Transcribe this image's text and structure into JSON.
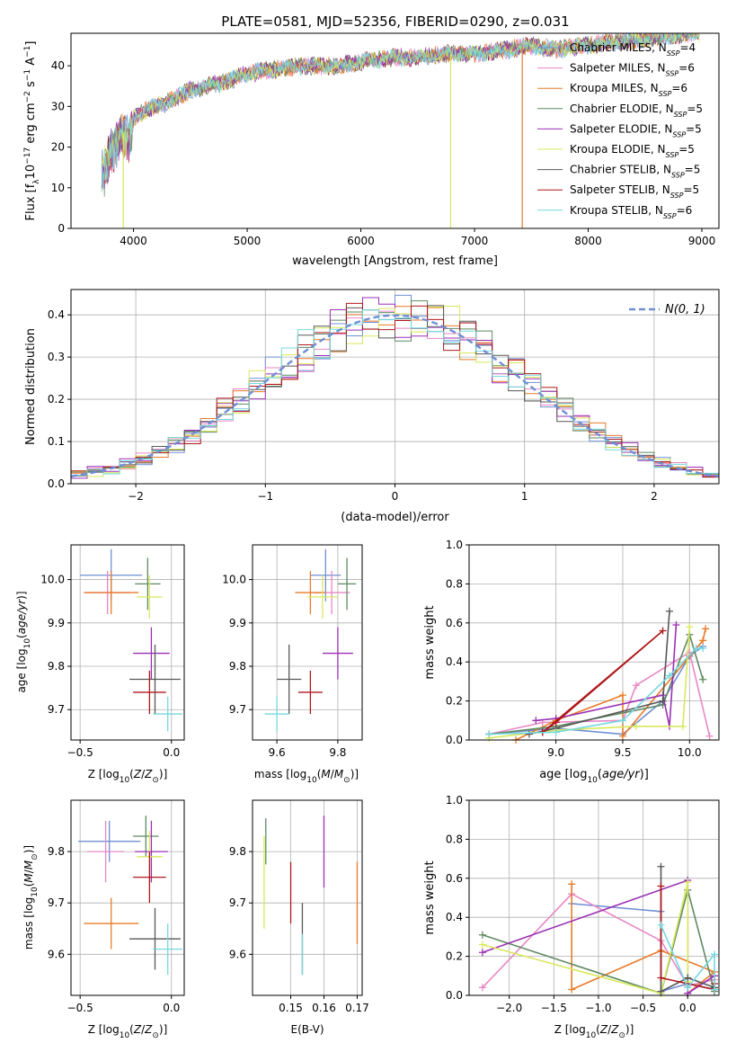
{
  "figure_title": "PLATE=0581, MJD=52356, FIBERID=0290, z=0.031",
  "colors": {
    "chabrier_miles": "#6f8fd4",
    "salpeter_miles": "#e887c6",
    "kroupa_miles": "#e77b2a",
    "chabrier_elodie": "#5f8a62",
    "salpeter_elodie": "#9b30b5",
    "kroupa_elodie": "#d9e85c",
    "chabrier_stelib": "#585858",
    "salpeter_stelib": "#b0181c",
    "kroupa_stelib": "#74d8dd",
    "normal_curve": "#6f8fd4",
    "grid": "#b0b0b0"
  },
  "chart_data": [
    {
      "id": "spectrum",
      "type": "line",
      "xlabel": "wavelength [Angstrom, rest frame]",
      "ylabel": "Flux [f_λ10^-17 erg cm^-2 s^-1 A^-1]",
      "xlim": [
        3450,
        9150
      ],
      "ylim": [
        0,
        48
      ],
      "xticks": [
        4000,
        5000,
        6000,
        7000,
        8000,
        9000
      ],
      "yticks": [
        0,
        10,
        20,
        30,
        40
      ],
      "grid": false,
      "legend_position": "right",
      "legend": [
        {
          "label": "Chabrier MILES, N",
          "sub": "SSP",
          "tail": "=4",
          "color": "#6f8fd4"
        },
        {
          "label": "Salpeter MILES, N",
          "sub": "SSP",
          "tail": "=6",
          "color": "#e887c6"
        },
        {
          "label": "Kroupa MILES, N",
          "sub": "SSP",
          "tail": "=6",
          "color": "#e77b2a"
        },
        {
          "label": "Chabrier ELODIE, N",
          "sub": "SSP",
          "tail": "=5",
          "color": "#5f8a62"
        },
        {
          "label": "Salpeter ELODIE, N",
          "sub": "SSP",
          "tail": "=5",
          "color": "#9b30b5"
        },
        {
          "label": "Kroupa ELODIE, N",
          "sub": "SSP",
          "tail": "=5",
          "color": "#d9e85c"
        },
        {
          "label": "Chabrier STELIB, N",
          "sub": "SSP",
          "tail": "=5",
          "color": "#585858"
        },
        {
          "label": "Salpeter STELIB, N",
          "sub": "SSP",
          "tail": "=5",
          "color": "#b0181c"
        },
        {
          "label": "Kroupa STELIB, N",
          "sub": "SSP",
          "tail": "=6",
          "color": "#74d8dd"
        }
      ],
      "anchors": {
        "x": [
          3720,
          3800,
          3900,
          3960,
          4000,
          4100,
          4300,
          4500,
          4800,
          5000,
          5200,
          5500,
          5800,
          6000,
          6300,
          6500,
          6800,
          7000,
          7300,
          7500,
          7700,
          8000,
          8300,
          8600,
          8900
        ],
        "y": [
          13,
          18,
          24,
          21,
          27,
          29,
          31,
          34,
          36,
          38,
          39,
          40,
          40,
          41,
          42,
          42,
          43,
          43,
          44,
          45,
          44,
          45,
          46,
          47,
          48
        ]
      },
      "dropouts": [
        {
          "x": 3910,
          "color": "#d9e85c",
          "start": 3905
        },
        {
          "x": 6790,
          "color": "#d9e85c",
          "start": 6785
        },
        {
          "x": 7420,
          "color": "#e77b2a",
          "start": 7400
        }
      ]
    },
    {
      "id": "residuals",
      "type": "histogram",
      "xlabel": "(data-model)/error",
      "ylabel": "Normed distribution",
      "xlim": [
        -2.5,
        2.5
      ],
      "ylim": [
        0,
        0.46
      ],
      "xticks": [
        -2,
        -1,
        0,
        1,
        2
      ],
      "yticks": [
        0.0,
        0.1,
        0.2,
        0.3,
        0.4
      ],
      "grid": true,
      "legend_position": "top-right",
      "legend_label": "N(0, 1)",
      "bin_edges_range": [
        -2.5,
        2.5
      ],
      "bins": 40,
      "normal": {
        "mean": 0,
        "sigma": 1
      }
    },
    {
      "id": "age_vs_Z",
      "type": "scatter",
      "xlabel": "Z [log10(Z/Z⊙)]",
      "ylabel": "age [log10(age/yr)]",
      "xlim": [
        -0.55,
        0.07
      ],
      "ylim": [
        9.63,
        10.08
      ],
      "xticks": [
        -0.5,
        0.0
      ],
      "yticks": [
        9.7,
        9.8,
        9.9,
        10.0
      ],
      "grid": true,
      "points": [
        {
          "x": -0.33,
          "y": 10.01,
          "xerr": 0.17,
          "yerr": 0.06,
          "color": "#6f8fd4"
        },
        {
          "x": -0.35,
          "y": 9.97,
          "xerr": 0.12,
          "yerr": 0.05,
          "color": "#e887c6"
        },
        {
          "x": -0.33,
          "y": 9.97,
          "xerr": 0.15,
          "yerr": 0.05,
          "color": "#e77b2a"
        },
        {
          "x": -0.13,
          "y": 9.99,
          "xerr": 0.07,
          "yerr": 0.06,
          "color": "#5f8a62"
        },
        {
          "x": -0.11,
          "y": 9.83,
          "xerr": 0.1,
          "yerr": 0.06,
          "color": "#9b30b5"
        },
        {
          "x": -0.12,
          "y": 9.96,
          "xerr": 0.07,
          "yerr": 0.05,
          "color": "#d9e85c"
        },
        {
          "x": -0.09,
          "y": 9.77,
          "xerr": 0.14,
          "yerr": 0.08,
          "color": "#585858"
        },
        {
          "x": -0.12,
          "y": 9.74,
          "xerr": 0.09,
          "yerr": 0.05,
          "color": "#b0181c"
        },
        {
          "x": -0.02,
          "y": 9.69,
          "xerr": 0.08,
          "yerr": 0.04,
          "color": "#74d8dd"
        }
      ]
    },
    {
      "id": "age_vs_mass",
      "type": "scatter",
      "xlabel": "mass [log10(M/M⊙)]",
      "ylabel": "",
      "xlim": [
        9.52,
        9.88
      ],
      "ylim": [
        9.63,
        10.08
      ],
      "xticks": [
        9.6,
        9.8
      ],
      "yticks": [
        9.7,
        9.8,
        9.9,
        10.0
      ],
      "grid": true,
      "points": [
        {
          "x": 9.76,
          "y": 10.01,
          "xerr": 0.05,
          "yerr": 0.06,
          "color": "#6f8fd4"
        },
        {
          "x": 9.78,
          "y": 9.97,
          "xerr": 0.06,
          "yerr": 0.05,
          "color": "#e887c6"
        },
        {
          "x": 9.71,
          "y": 9.97,
          "xerr": 0.05,
          "yerr": 0.05,
          "color": "#e77b2a"
        },
        {
          "x": 9.83,
          "y": 9.99,
          "xerr": 0.03,
          "yerr": 0.06,
          "color": "#5f8a62"
        },
        {
          "x": 9.8,
          "y": 9.83,
          "xerr": 0.05,
          "yerr": 0.06,
          "color": "#9b30b5"
        },
        {
          "x": 9.75,
          "y": 9.96,
          "xerr": 0.05,
          "yerr": 0.05,
          "color": "#d9e85c"
        },
        {
          "x": 9.64,
          "y": 9.77,
          "xerr": 0.04,
          "yerr": 0.08,
          "color": "#585858"
        },
        {
          "x": 9.71,
          "y": 9.74,
          "xerr": 0.04,
          "yerr": 0.05,
          "color": "#b0181c"
        },
        {
          "x": 9.6,
          "y": 9.69,
          "xerr": 0.04,
          "yerr": 0.04,
          "color": "#74d8dd"
        }
      ]
    },
    {
      "id": "mass_weight_vs_age",
      "type": "line",
      "xlabel": "age [log10(age/yr)]",
      "ylabel": "mass weight",
      "xlim": [
        8.35,
        10.22
      ],
      "ylim": [
        0,
        1
      ],
      "xticks": [
        9.0,
        9.5,
        10.0
      ],
      "yticks": [
        0.0,
        0.2,
        0.4,
        0.6,
        0.8,
        1.0
      ],
      "grid": true,
      "series": [
        {
          "color": "#6f8fd4",
          "x": [
            8.5,
            9.0,
            9.5,
            9.8,
            10.0,
            10.1
          ],
          "y": [
            0.03,
            0.06,
            0.03,
            0.2,
            0.43,
            0.48
          ]
        },
        {
          "color": "#e887c6",
          "x": [
            8.5,
            8.9,
            9.5,
            9.6,
            10.0,
            10.15
          ],
          "y": [
            0.03,
            0.09,
            0.1,
            0.28,
            0.45,
            0.02
          ]
        },
        {
          "color": "#e77b2a",
          "x": [
            8.7,
            9.0,
            9.5,
            9.5,
            10.1,
            10.12
          ],
          "y": [
            0.0,
            0.1,
            0.23,
            0.02,
            0.51,
            0.57
          ]
        },
        {
          "color": "#5f8a62",
          "x": [
            8.5,
            9.0,
            9.8,
            10.0,
            10.1
          ],
          "y": [
            0.03,
            0.07,
            0.18,
            0.54,
            0.31
          ]
        },
        {
          "color": "#9b30b5",
          "x": [
            8.85,
            9.0,
            9.8,
            9.85,
            9.9
          ],
          "y": [
            0.1,
            0.11,
            0.23,
            0.07,
            0.59
          ]
        },
        {
          "color": "#d9e85c",
          "x": [
            8.5,
            9.0,
            9.6,
            9.95,
            10.0
          ],
          "y": [
            0.01,
            0.05,
            0.07,
            0.07,
            0.58
          ]
        },
        {
          "color": "#585858",
          "x": [
            8.8,
            9.0,
            9.8,
            9.85
          ],
          "y": [
            0.03,
            0.06,
            0.2,
            0.66
          ]
        },
        {
          "color": "#b0181c",
          "x": [
            8.9,
            9.0,
            9.8,
            8.9
          ],
          "y": [
            0.04,
            0.09,
            0.56,
            0.04
          ]
        },
        {
          "color": "#74d8dd",
          "x": [
            8.5,
            9.0,
            9.5,
            9.85,
            10.05,
            10.1
          ],
          "y": [
            0.03,
            0.04,
            0.1,
            0.33,
            0.47,
            0.47
          ]
        }
      ]
    },
    {
      "id": "mass_vs_Z",
      "type": "scatter",
      "xlabel": "Z [log10(Z/Z⊙)]",
      "ylabel": "mass [log10(M/M⊙)]",
      "xlim": [
        -0.55,
        0.07
      ],
      "ylim": [
        9.52,
        9.9
      ],
      "xticks": [
        -0.5,
        0.0
      ],
      "yticks": [
        9.6,
        9.7,
        9.8
      ],
      "grid": true,
      "points": [
        {
          "x": -0.34,
          "y": 9.82,
          "xerr": 0.17,
          "yerr": 0.04,
          "color": "#6f8fd4"
        },
        {
          "x": -0.36,
          "y": 9.8,
          "xerr": 0.1,
          "yerr": 0.06,
          "color": "#e887c6"
        },
        {
          "x": -0.33,
          "y": 9.66,
          "xerr": 0.15,
          "yerr": 0.05,
          "color": "#e77b2a"
        },
        {
          "x": -0.14,
          "y": 9.83,
          "xerr": 0.07,
          "yerr": 0.04,
          "color": "#5f8a62"
        },
        {
          "x": -0.11,
          "y": 9.8,
          "xerr": 0.09,
          "yerr": 0.06,
          "color": "#9b30b5"
        },
        {
          "x": -0.12,
          "y": 9.79,
          "xerr": 0.07,
          "yerr": 0.05,
          "color": "#d9e85c"
        },
        {
          "x": -0.09,
          "y": 9.63,
          "xerr": 0.14,
          "yerr": 0.06,
          "color": "#585858"
        },
        {
          "x": -0.12,
          "y": 9.75,
          "xerr": 0.09,
          "yerr": 0.05,
          "color": "#b0181c"
        },
        {
          "x": -0.02,
          "y": 9.61,
          "xerr": 0.08,
          "yerr": 0.05,
          "color": "#74d8dd"
        }
      ]
    },
    {
      "id": "mass_vs_ebv",
      "type": "scatter",
      "xlabel": "E(B-V)",
      "ylabel": "",
      "xlim": [
        0.1385,
        0.1715
      ],
      "ylim": [
        9.52,
        9.9
      ],
      "xticks": [
        0.15,
        0.16,
        0.17
      ],
      "yticks": [
        9.6,
        9.7,
        9.8
      ],
      "grid": true,
      "points": [
        {
          "x": 0.1425,
          "y": 9.82,
          "xerr": 0,
          "yerr": 0.045,
          "color": "#5f8a62"
        },
        {
          "x": 0.142,
          "y": 9.74,
          "xerr": 0,
          "yerr": 0.09,
          "color": "#d9e85c"
        },
        {
          "x": 0.15,
          "y": 9.72,
          "xerr": 0,
          "yerr": 0.06,
          "color": "#b0181c"
        },
        {
          "x": 0.1535,
          "y": 9.63,
          "xerr": 0,
          "yerr": 0.07,
          "color": "#585858"
        },
        {
          "x": 0.1535,
          "y": 9.6,
          "xerr": 0,
          "yerr": 0.04,
          "color": "#74d8dd"
        },
        {
          "x": 0.16,
          "y": 9.8,
          "xerr": 0,
          "yerr": 0.07,
          "color": "#9b30b5"
        },
        {
          "x": 0.17,
          "y": 9.7,
          "xerr": 0,
          "yerr": 0.08,
          "color": "#e77b2a"
        }
      ]
    },
    {
      "id": "mass_weight_vs_Z",
      "type": "line",
      "xlabel": "Z [log10(Z/Z⊙)]",
      "ylabel": "mass weight",
      "xlim": [
        -2.45,
        0.35
      ],
      "ylim": [
        0,
        1
      ],
      "xticks": [
        -2.0,
        -1.5,
        -1.0,
        -0.5,
        0.0
      ],
      "yticks": [
        0.0,
        0.2,
        0.4,
        0.6,
        0.8,
        1.0
      ],
      "grid": true,
      "series": [
        {
          "color": "#6f8fd4",
          "x": [
            -1.3,
            -0.3,
            -0.3,
            0.0,
            0.3
          ],
          "y": [
            0.47,
            0.43,
            0.02,
            0.06,
            0.03
          ]
        },
        {
          "color": "#e887c6",
          "x": [
            -2.3,
            -1.3,
            -0.3,
            0.0,
            0.3
          ],
          "y": [
            0.04,
            0.52,
            0.28,
            0.05,
            0.08
          ]
        },
        {
          "color": "#e77b2a",
          "x": [
            -1.3,
            -1.3,
            -0.3,
            0.3,
            0.0
          ],
          "y": [
            0.57,
            0.03,
            0.23,
            0.12,
            0.01
          ]
        },
        {
          "color": "#5f8a62",
          "x": [
            -2.3,
            -0.3,
            0.0,
            0.3
          ],
          "y": [
            0.31,
            0.01,
            0.54,
            0.02
          ]
        },
        {
          "color": "#9b30b5",
          "x": [
            -2.3,
            0.0,
            0.0,
            0.3
          ],
          "y": [
            0.22,
            0.59,
            0.01,
            0.1
          ]
        },
        {
          "color": "#d9e85c",
          "x": [
            -2.3,
            -0.3,
            0.0,
            0.0
          ],
          "y": [
            0.26,
            0.01,
            0.58,
            0.07
          ]
        },
        {
          "color": "#585858",
          "x": [
            -0.3,
            -0.3,
            0.0,
            0.3
          ],
          "y": [
            0.66,
            0.02,
            0.09,
            0.04
          ]
        },
        {
          "color": "#b0181c",
          "x": [
            -0.3,
            -0.3,
            0.3,
            0.3
          ],
          "y": [
            0.56,
            0.09,
            0.03,
            0.06
          ]
        },
        {
          "color": "#74d8dd",
          "x": [
            -0.3,
            0.0,
            0.3,
            0.3
          ],
          "y": [
            0.36,
            0.04,
            0.21,
            0.03
          ]
        }
      ]
    }
  ]
}
